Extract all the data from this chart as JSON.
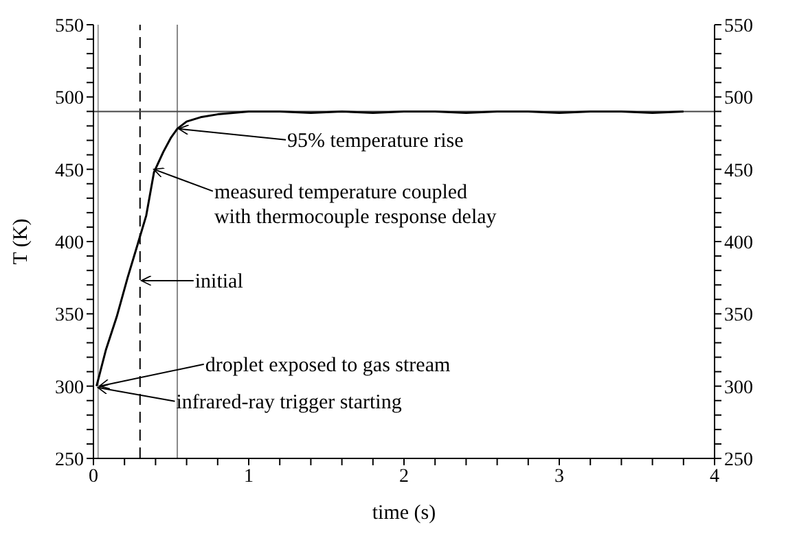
{
  "chart_data": {
    "type": "line",
    "xlabel": "time  (s)",
    "ylabel": "T  (K)",
    "x": [
      0.02,
      0.08,
      0.15,
      0.22,
      0.29,
      0.34,
      0.39,
      0.45,
      0.5,
      0.54,
      0.6,
      0.69,
      0.8,
      0.9,
      1.0,
      1.2,
      1.4,
      1.6,
      1.8,
      2.0,
      2.2,
      2.4,
      2.6,
      2.8,
      3.0,
      3.2,
      3.4,
      3.6,
      3.8
    ],
    "series": [
      {
        "color": "#000000",
        "values": [
          300,
          325,
          348,
          375,
          400,
          418,
          448,
          462,
          472,
          478,
          483,
          486,
          488,
          489,
          490,
          490,
          489,
          490,
          489,
          490,
          490,
          489,
          490,
          490,
          489,
          490,
          490,
          489,
          490
        ]
      }
    ],
    "xlim": [
      0,
      4
    ],
    "ylim": [
      250,
      550
    ],
    "y2lim": [
      250,
      550
    ],
    "xticks": [
      0,
      {
        "value": 0.2,
        "label": null
      },
      {
        "value": 0.4,
        "label": null
      },
      {
        "value": 0.6,
        "label": null
      },
      {
        "value": 0.8,
        "label": null
      },
      1,
      {
        "value": 1.2,
        "label": null
      },
      {
        "value": 1.4,
        "label": null
      },
      {
        "value": 1.6,
        "label": null
      },
      {
        "value": 1.8,
        "label": null
      },
      2,
      {
        "value": 2.2,
        "label": null
      },
      {
        "value": 2.4,
        "label": null
      },
      {
        "value": 2.6,
        "label": null
      },
      {
        "value": 2.8,
        "label": null
      },
      3,
      {
        "value": 3.2,
        "label": null
      },
      {
        "value": 3.4,
        "label": null
      },
      {
        "value": 3.6,
        "label": null
      },
      {
        "value": 3.8,
        "label": null
      },
      4
    ],
    "yticks": [
      250,
      {
        "value": 260,
        "label": null
      },
      {
        "value": 270,
        "label": null
      },
      {
        "value": 280,
        "label": null
      },
      {
        "value": 290,
        "label": null
      },
      300,
      {
        "value": 310,
        "label": null
      },
      {
        "value": 320,
        "label": null
      },
      {
        "value": 330,
        "label": null
      },
      {
        "value": 340,
        "label": null
      },
      350,
      {
        "value": 360,
        "label": null
      },
      {
        "value": 370,
        "label": null
      },
      {
        "value": 380,
        "label": null
      },
      {
        "value": 390,
        "label": null
      },
      400,
      {
        "value": 410,
        "label": null
      },
      {
        "value": 420,
        "label": null
      },
      {
        "value": 430,
        "label": null
      },
      {
        "value": 440,
        "label": null
      },
      450,
      {
        "value": 460,
        "label": null
      },
      {
        "value": 470,
        "label": null
      },
      {
        "value": 480,
        "label": null
      },
      {
        "value": 490,
        "label": null
      },
      500,
      {
        "value": 510,
        "label": null
      },
      {
        "value": 520,
        "label": null
      },
      {
        "value": 530,
        "label": null
      },
      {
        "value": 540,
        "label": null
      },
      550
    ],
    "y2ticks": [
      250,
      {
        "value": 260,
        "label": null
      },
      {
        "value": 270,
        "label": null
      },
      {
        "value": 280,
        "label": null
      },
      {
        "value": 290,
        "label": null
      },
      300,
      {
        "value": 310,
        "label": null
      },
      {
        "value": 320,
        "label": null
      },
      {
        "value": 330,
        "label": null
      },
      {
        "value": 340,
        "label": null
      },
      350,
      {
        "value": 360,
        "label": null
      },
      {
        "value": 370,
        "label": null
      },
      {
        "value": 380,
        "label": null
      },
      {
        "value": 390,
        "label": null
      },
      400,
      {
        "value": 410,
        "label": null
      },
      {
        "value": 420,
        "label": null
      },
      {
        "value": 430,
        "label": null
      },
      {
        "value": 440,
        "label": null
      },
      450,
      {
        "value": 460,
        "label": null
      },
      {
        "value": 470,
        "label": null
      },
      {
        "value": 480,
        "label": null
      },
      {
        "value": 490,
        "label": null
      },
      500,
      {
        "value": 510,
        "label": null
      },
      {
        "value": 520,
        "label": null
      },
      {
        "value": 530,
        "label": null
      },
      {
        "value": 540,
        "label": null
      },
      550
    ],
    "ref_lines": [
      {
        "axis": "x",
        "value": 0.03,
        "color": "#999999",
        "line_style": "solid"
      },
      {
        "axis": "x",
        "value": 0.3,
        "color": "#000000",
        "line_style": "dashed"
      },
      {
        "axis": "x",
        "value": 0.54,
        "color": "#888888",
        "line_style": "solid"
      },
      {
        "axis": "y",
        "value": 490,
        "color": "#444444",
        "line_style": "solid"
      }
    ],
    "annotations": [
      {
        "text": "95% temperature rise",
        "x": 0.54,
        "y": 478
      },
      {
        "text": "measured temperature coupled\nwith thermocouple response delay",
        "x": 0.38,
        "y": 450
      },
      {
        "text": "initial",
        "x": 0.3,
        "y": 373
      },
      {
        "text": "droplet exposed to gas stream",
        "x": 0.03,
        "y": 300
      },
      {
        "text": "infrared-ray trigger starting",
        "x": 0.02,
        "y": 299
      }
    ],
    "grid": false,
    "legend": false,
    "marker": "none",
    "line_style": "solid"
  }
}
